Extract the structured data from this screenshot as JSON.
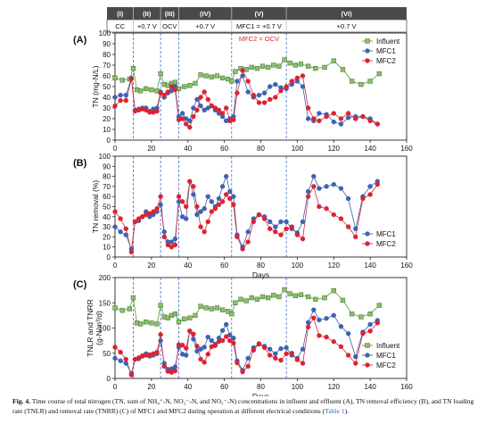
{
  "caption": {
    "label": "Fig. 4.",
    "text": " Time course of total nitrogen (TN, sum of NH₄⁺-N, NO₂⁻-N, and NO₃⁻-N) concentrations in influent and effluent (A), TN removal efficiency (B), and TN loading rate (TNLR) and removal rate (TNRR) (C) of MFC1 and MFC2 during operation at different electrical conditions (",
    "link": "Table 1",
    "tail": ")."
  },
  "phase_header": {
    "phases": [
      "(I)",
      "(II)",
      "(III)",
      "(IV)",
      "(V)",
      "(VI)"
    ],
    "conditions": [
      "CC",
      "+0.7 V",
      "OCV",
      "+0.7 V",
      "MFC1 = +0.7 V",
      "+0.7 V"
    ],
    "note": "MFC2 = OCV",
    "boundaries": [
      0,
      10,
      25,
      35,
      64,
      94,
      160
    ]
  },
  "colors": {
    "influent": "#5a9a3c",
    "influent_fill": "#8cc068",
    "mfc1": "#3b5ea8",
    "mfc1_fill": "#3d63b3",
    "mfc2": "#d42a3a",
    "mfc2_fill": "#e02030",
    "divider": "#3b6fc9"
  },
  "chart_data": [
    {
      "type": "line",
      "panel": "(A)",
      "xlabel": "",
      "ylabel": "TN (mg-N/L)",
      "xlim": [
        0,
        160
      ],
      "ylim": [
        0,
        100
      ],
      "xticks": [
        "0",
        "20",
        "40",
        "60",
        "80",
        "100",
        "120",
        "140",
        "160"
      ],
      "yticks": [
        "0",
        "10",
        "20",
        "30",
        "40",
        "50",
        "60",
        "70",
        "80",
        "90",
        "100"
      ],
      "legend": [
        "Influent",
        "MFC1",
        "MFC2"
      ],
      "legend_position": "top-right",
      "series": [
        {
          "name": "Influent",
          "x": [
            0,
            4,
            8,
            10,
            12,
            14,
            17,
            20,
            23,
            25,
            27,
            29,
            31,
            33,
            35,
            38,
            41,
            44,
            47,
            50,
            53,
            56,
            59,
            62,
            64,
            66,
            69,
            72,
            75,
            78,
            81,
            84,
            87,
            90,
            93,
            96,
            99,
            102,
            106,
            110,
            115,
            120,
            125,
            130,
            135,
            140,
            145
          ],
          "y": [
            58,
            56,
            57,
            67,
            47,
            46,
            48,
            47,
            46,
            62,
            52,
            51,
            53,
            54,
            48,
            50,
            51,
            53,
            61,
            60,
            59,
            60,
            58,
            57,
            55,
            64,
            67,
            66,
            68,
            67,
            69,
            68,
            70,
            69,
            75,
            72,
            70,
            71,
            69,
            67,
            68,
            74,
            66,
            55,
            52,
            55,
            62
          ]
        },
        {
          "name": "MFC1",
          "x": [
            0,
            3,
            6,
            9,
            11,
            13,
            15,
            17,
            19,
            21,
            23,
            25,
            27,
            29,
            31,
            33,
            35,
            37,
            39,
            41,
            43,
            45,
            47,
            49,
            51,
            53,
            55,
            57,
            59,
            61,
            63,
            65,
            67,
            70,
            73,
            76,
            79,
            82,
            85,
            88,
            91,
            94,
            97,
            100,
            103,
            106,
            109,
            112,
            116,
            120,
            124,
            128,
            132,
            136,
            140,
            144
          ],
          "y": [
            40,
            42,
            42,
            58,
            28,
            29,
            30,
            30,
            27,
            29,
            30,
            45,
            40,
            44,
            46,
            50,
            22,
            25,
            20,
            18,
            30,
            38,
            32,
            28,
            30,
            32,
            28,
            25,
            22,
            18,
            20,
            22,
            55,
            60,
            45,
            40,
            42,
            44,
            50,
            52,
            49,
            48,
            52,
            55,
            50,
            20,
            18,
            25,
            24,
            17,
            15,
            21,
            22,
            22,
            20,
            15
          ]
        },
        {
          "name": "MFC2",
          "x": [
            0,
            3,
            6,
            9,
            11,
            13,
            15,
            17,
            19,
            21,
            23,
            25,
            27,
            29,
            31,
            33,
            35,
            37,
            39,
            41,
            43,
            45,
            47,
            49,
            51,
            53,
            55,
            57,
            59,
            61,
            63,
            65,
            67,
            70,
            73,
            76,
            79,
            82,
            85,
            88,
            91,
            94,
            97,
            100,
            103,
            106,
            109,
            112,
            116,
            120,
            124,
            128,
            132,
            136,
            140,
            144
          ],
          "y": [
            32,
            37,
            37,
            57,
            27,
            28,
            29,
            28,
            26,
            26,
            27,
            44,
            42,
            45,
            50,
            47,
            19,
            20,
            15,
            12,
            22,
            28,
            40,
            45,
            38,
            32,
            30,
            28,
            25,
            30,
            18,
            19,
            44,
            65,
            55,
            42,
            35,
            35,
            38,
            40,
            46,
            50,
            55,
            58,
            60,
            30,
            20,
            18,
            22,
            25,
            20,
            25,
            20,
            22,
            18,
            15
          ]
        }
      ]
    },
    {
      "type": "line",
      "panel": "(B)",
      "xlabel": "Days",
      "ylabel": "TN removal (%)",
      "xlim": [
        0,
        160
      ],
      "ylim": [
        0,
        100
      ],
      "xticks": [
        "0",
        "20",
        "40",
        "60",
        "80",
        "100",
        "120",
        "140",
        "160"
      ],
      "yticks": [
        "0",
        "10",
        "20",
        "30",
        "40",
        "50",
        "60",
        "70",
        "80",
        "90",
        "100"
      ],
      "legend": [
        "MFC1",
        "MFC2"
      ],
      "legend_position": "bottom-right",
      "series": [
        {
          "name": "MFC1",
          "x": [
            0,
            3,
            6,
            9,
            11,
            13,
            15,
            17,
            19,
            21,
            23,
            25,
            27,
            29,
            31,
            33,
            35,
            37,
            39,
            41,
            43,
            45,
            47,
            49,
            51,
            53,
            55,
            57,
            59,
            61,
            63,
            65,
            67,
            70,
            73,
            76,
            79,
            82,
            85,
            88,
            91,
            94,
            97,
            100,
            103,
            106,
            109,
            112,
            116,
            120,
            124,
            128,
            132,
            136,
            140,
            144
          ],
          "y": [
            30,
            25,
            22,
            8,
            35,
            36,
            40,
            45,
            40,
            42,
            45,
            52,
            25,
            15,
            15,
            18,
            55,
            40,
            38,
            75,
            62,
            42,
            45,
            48,
            60,
            55,
            50,
            58,
            70,
            80,
            65,
            60,
            22,
            10,
            25,
            38,
            42,
            40,
            35,
            30,
            35,
            35,
            28,
            24,
            35,
            65,
            80,
            68,
            70,
            72,
            68,
            58,
            28,
            60,
            70,
            75
          ]
        },
        {
          "name": "MFC2",
          "x": [
            0,
            3,
            6,
            9,
            11,
            13,
            15,
            17,
            19,
            21,
            23,
            25,
            27,
            29,
            31,
            33,
            35,
            37,
            39,
            41,
            43,
            45,
            47,
            49,
            51,
            53,
            55,
            57,
            59,
            61,
            63,
            65,
            67,
            70,
            73,
            76,
            79,
            82,
            85,
            88,
            91,
            94,
            97,
            100,
            103,
            106,
            109,
            112,
            116,
            120,
            124,
            128,
            132,
            136,
            140,
            144
          ],
          "y": [
            45,
            38,
            28,
            5,
            35,
            38,
            40,
            42,
            43,
            45,
            48,
            60,
            20,
            12,
            10,
            12,
            60,
            55,
            50,
            75,
            70,
            50,
            30,
            25,
            35,
            45,
            48,
            52,
            55,
            62,
            58,
            52,
            20,
            8,
            15,
            35,
            42,
            38,
            28,
            25,
            22,
            28,
            30,
            22,
            18,
            60,
            70,
            50,
            48,
            42,
            38,
            30,
            20,
            58,
            62,
            72
          ]
        }
      ]
    },
    {
      "type": "line",
      "panel": "(C)",
      "xlabel": "Days",
      "ylabel": "TNLR and TNRR (g-N/m³/d)",
      "xlim": [
        0,
        160
      ],
      "ylim": [
        0,
        200
      ],
      "xticks": [
        "0",
        "20",
        "40",
        "60",
        "80",
        "100",
        "120",
        "140",
        "160"
      ],
      "yticks": [
        "0",
        "50",
        "100",
        "150",
        "200"
      ],
      "legend": [
        "Influent",
        "MFC1",
        "MFC2"
      ],
      "legend_position": "bottom-right",
      "series": [
        {
          "name": "Influent",
          "x": [
            0,
            4,
            8,
            10,
            12,
            14,
            17,
            20,
            23,
            25,
            27,
            29,
            31,
            33,
            35,
            38,
            41,
            44,
            47,
            50,
            53,
            56,
            59,
            62,
            64,
            66,
            69,
            72,
            75,
            78,
            81,
            84,
            87,
            90,
            93,
            96,
            99,
            102,
            106,
            110,
            115,
            120,
            125,
            130,
            135,
            140,
            145
          ],
          "y": [
            140,
            135,
            138,
            160,
            110,
            108,
            112,
            110,
            108,
            145,
            122,
            120,
            125,
            128,
            112,
            118,
            120,
            125,
            143,
            140,
            138,
            140,
            136,
            133,
            128,
            150,
            157,
            154,
            160,
            157,
            162,
            160,
            165,
            162,
            176,
            168,
            164,
            166,
            162,
            157,
            160,
            174,
            155,
            128,
            122,
            128,
            145
          ]
        },
        {
          "name": "MFC1",
          "x": [
            0,
            3,
            6,
            9,
            11,
            13,
            15,
            17,
            19,
            21,
            23,
            25,
            27,
            29,
            31,
            33,
            35,
            37,
            39,
            41,
            43,
            45,
            47,
            49,
            51,
            53,
            55,
            57,
            59,
            61,
            63,
            65,
            67,
            70,
            73,
            76,
            79,
            82,
            85,
            88,
            91,
            94,
            97,
            100,
            103,
            106,
            109,
            112,
            116,
            120,
            124,
            128,
            132,
            136,
            140,
            144
          ],
          "y": [
            40,
            35,
            30,
            10,
            38,
            39,
            44,
            49,
            44,
            46,
            49,
            75,
            30,
            18,
            19,
            23,
            62,
            48,
            46,
            94,
            78,
            54,
            58,
            62,
            82,
            75,
            68,
            80,
            95,
            107,
            86,
            80,
            35,
            16,
            40,
            61,
            68,
            64,
            58,
            49,
            59,
            61,
            46,
            40,
            58,
            111,
            136,
            116,
            119,
            125,
            103,
            89,
            43,
            92,
            107,
            115
          ]
        },
        {
          "name": "MFC2",
          "x": [
            0,
            3,
            6,
            9,
            11,
            13,
            15,
            17,
            19,
            21,
            23,
            25,
            27,
            29,
            31,
            33,
            35,
            37,
            39,
            41,
            43,
            45,
            47,
            49,
            51,
            53,
            55,
            57,
            59,
            61,
            63,
            65,
            67,
            70,
            73,
            76,
            79,
            82,
            85,
            88,
            91,
            94,
            97,
            100,
            103,
            106,
            109,
            112,
            116,
            120,
            124,
            128,
            132,
            136,
            140,
            144
          ],
          "y": [
            62,
            52,
            38,
            7,
            38,
            41,
            45,
            46,
            47,
            49,
            52,
            87,
            24,
            14,
            12,
            15,
            67,
            66,
            60,
            94,
            88,
            64,
            38,
            32,
            48,
            63,
            65,
            73,
            75,
            83,
            75,
            70,
            31,
            13,
            24,
            56,
            69,
            61,
            46,
            40,
            36,
            49,
            50,
            37,
            30,
            102,
            120,
            85,
            82,
            73,
            63,
            46,
            30,
            89,
            94,
            110
          ]
        }
      ]
    }
  ]
}
